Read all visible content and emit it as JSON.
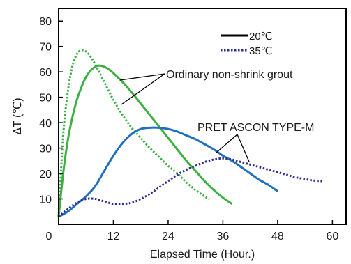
{
  "chart_data": {
    "type": "line",
    "xlabel": "Elapsed Time (Hour.)",
    "ylabel": "ΔT (℃)",
    "xlim": [
      0,
      63
    ],
    "ylim": [
      0,
      85
    ],
    "xticks": [
      0,
      12,
      24,
      36,
      48,
      60
    ],
    "yticks": [
      10,
      20,
      30,
      40,
      50,
      60,
      70,
      80
    ],
    "grid": false,
    "legend_position": "top-right",
    "legend": [
      {
        "label": "20℃",
        "style": "solid"
      },
      {
        "label": "35℃",
        "style": "dotted"
      }
    ],
    "colors": {
      "ordinary": "#3cb043",
      "pret": "#1f6fbf",
      "axis": "#000000"
    },
    "annotations": [
      {
        "text": "Ordinary non-shrink grout",
        "series": "ordinary"
      },
      {
        "text": "PRET ASCON TYPE-M",
        "series": "pret"
      }
    ],
    "series": [
      {
        "group": "ordinary",
        "style": "solid",
        "x": [
          0,
          1,
          2,
          3,
          4,
          5,
          6,
          7,
          8,
          9,
          10,
          11,
          12,
          14,
          16,
          18,
          20,
          22,
          24,
          26,
          28,
          30,
          32,
          34,
          36,
          38
        ],
        "y": [
          3,
          20,
          33,
          42,
          49,
          54,
          58,
          60.5,
          62,
          62.5,
          62,
          61,
          59.5,
          56,
          52,
          47.5,
          43,
          38.5,
          34,
          29.5,
          25,
          21,
          17,
          13.5,
          10.5,
          8
        ]
      },
      {
        "group": "ordinary",
        "style": "dotted",
        "x": [
          0,
          1,
          2,
          3,
          4,
          5,
          6,
          7,
          8,
          10,
          12,
          14,
          16,
          18,
          20,
          22,
          24,
          26,
          28,
          30,
          32,
          33
        ],
        "y": [
          3,
          35,
          52,
          62,
          67,
          68.5,
          68,
          66,
          63,
          56,
          49,
          43,
          38,
          34,
          30,
          26.5,
          23,
          20,
          16.5,
          13.5,
          11,
          10
        ]
      },
      {
        "group": "pret",
        "style": "solid",
        "x": [
          0,
          2,
          4,
          6,
          8,
          10,
          12,
          14,
          16,
          18,
          20,
          22,
          24,
          26,
          28,
          30,
          32,
          34,
          36,
          38,
          40,
          42,
          44,
          46,
          48
        ],
        "y": [
          3,
          5,
          8,
          11,
          15,
          21,
          27,
          32,
          35.5,
          37.5,
          38,
          38,
          37.5,
          36.5,
          35,
          33.5,
          31.5,
          29.5,
          27,
          25,
          22.5,
          20,
          17.5,
          15.5,
          13
        ]
      },
      {
        "group": "pret",
        "style": "dotted",
        "x": [
          0,
          2,
          4,
          6,
          8,
          10,
          12,
          14,
          16,
          18,
          20,
          22,
          24,
          26,
          28,
          30,
          32,
          34,
          36,
          38,
          40,
          42,
          44,
          46,
          48,
          50,
          52,
          54,
          56,
          58
        ],
        "y": [
          3,
          6,
          8.5,
          10,
          10,
          9,
          8,
          8,
          8.5,
          10,
          12,
          14.5,
          17,
          19.5,
          21.5,
          23,
          24.5,
          25.5,
          26,
          25.5,
          24.5,
          23.5,
          22.5,
          21.5,
          20.5,
          19.5,
          18.5,
          17.8,
          17.2,
          17
        ]
      }
    ]
  }
}
